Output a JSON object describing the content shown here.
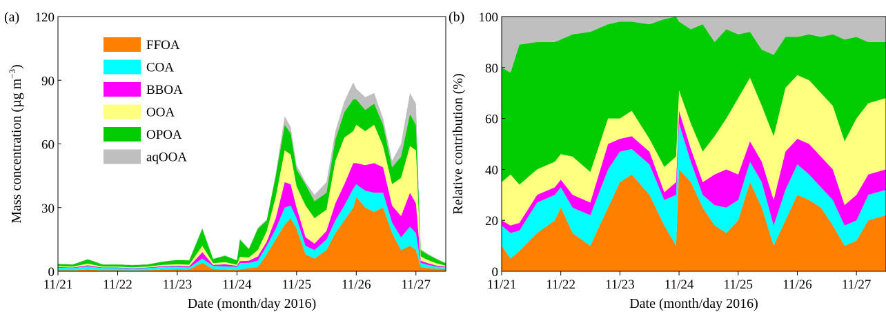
{
  "colors": {
    "FFOA": "#ff7f00",
    "COA": "#00ffff",
    "BBOA": "#ff00ff",
    "OOA": "#ffff80",
    "OPOA": "#00cc00",
    "aqOOA": "#bfbfbf"
  },
  "chart_data": [
    {
      "type": "area",
      "stacked": true,
      "panel_label": "(a)",
      "title": "",
      "xlabel": "Date (month/day 2016)",
      "ylabel_main": "Mass concentration (µg m",
      "ylabel_sup": "−3",
      "ylabel_end": ")",
      "xlim": [
        0,
        6.5
      ],
      "ylim": [
        0,
        120
      ],
      "x_ticks": [
        0,
        1,
        2,
        3,
        4,
        5,
        6
      ],
      "x_tick_labels": [
        "11/21",
        "11/22",
        "11/23",
        "11/24",
        "11/25",
        "11/26",
        "11/27"
      ],
      "y_ticks": [
        0,
        30,
        60,
        90,
        120
      ],
      "y_tick_labels": [
        "0",
        "30",
        "60",
        "90",
        "120"
      ],
      "grid": false,
      "legend_position": "top-left",
      "x": [
        0,
        0.25,
        0.5,
        0.75,
        1.0,
        1.25,
        1.5,
        1.75,
        2.0,
        2.2,
        2.42,
        2.6,
        2.8,
        3.0,
        3.05,
        3.2,
        3.35,
        3.5,
        3.65,
        3.8,
        3.9,
        4.0,
        4.15,
        4.3,
        4.5,
        4.65,
        4.8,
        4.95,
        5.0,
        5.15,
        5.3,
        5.45,
        5.6,
        5.75,
        5.9,
        6.0,
        6.08,
        6.2,
        6.35,
        6.5
      ],
      "series": [
        {
          "name": "FFOA",
          "values": [
            0.5,
            0.5,
            0.8,
            0.5,
            0.5,
            0.4,
            0.5,
            0.8,
            1.0,
            0.8,
            4.0,
            1.0,
            0.8,
            0.6,
            0.8,
            1.5,
            2.0,
            8.0,
            15.0,
            22.0,
            25.0,
            20.0,
            8.0,
            6.0,
            10.0,
            18.0,
            24.0,
            30.0,
            35.0,
            30.0,
            28.0,
            30.0,
            18.0,
            10.0,
            12.0,
            10.0,
            2.0,
            1.5,
            1.2,
            1.0
          ]
        },
        {
          "name": "COA",
          "values": [
            1.2,
            1.0,
            1.5,
            1.0,
            1.0,
            0.8,
            1.0,
            1.2,
            1.2,
            1.0,
            2.0,
            1.5,
            1.5,
            1.5,
            3.0,
            2.5,
            3.0,
            4.0,
            5.0,
            8.0,
            6.0,
            5.0,
            4.0,
            4.0,
            5.0,
            6.0,
            7.0,
            9.0,
            6.0,
            8.0,
            9.0,
            7.0,
            5.0,
            6.0,
            9.0,
            8.0,
            2.0,
            1.5,
            1.0,
            0.8
          ]
        },
        {
          "name": "BBOA",
          "values": [
            0.3,
            0.3,
            0.5,
            0.3,
            0.3,
            0.3,
            0.3,
            0.4,
            0.5,
            0.5,
            3.0,
            0.5,
            1.0,
            0.5,
            1.0,
            1.0,
            2.0,
            2.0,
            5.0,
            12.0,
            10.0,
            5.0,
            4.0,
            3.0,
            4.0,
            8.0,
            10.0,
            12.0,
            10.0,
            12.0,
            14.0,
            12.0,
            8.0,
            10.0,
            16.0,
            14.0,
            1.0,
            0.8,
            0.5,
            0.4
          ]
        },
        {
          "name": "OOA",
          "values": [
            0.4,
            0.4,
            0.8,
            0.4,
            0.4,
            0.4,
            0.4,
            0.6,
            0.6,
            0.8,
            3.0,
            0.8,
            1.0,
            0.5,
            2.0,
            1.5,
            3.0,
            5.0,
            10.0,
            15.0,
            14.0,
            10.0,
            15.0,
            12.0,
            10.0,
            20.0,
            22.0,
            15.0,
            18.0,
            16.0,
            18.0,
            10.0,
            10.0,
            18.0,
            22.0,
            25.0,
            2.0,
            1.5,
            1.0,
            0.5
          ]
        },
        {
          "name": "OPOA",
          "values": [
            1.0,
            1.0,
            2.0,
            1.0,
            1.0,
            1.0,
            1.0,
            1.5,
            2.0,
            2.0,
            8.0,
            2.0,
            3.0,
            2.0,
            8.0,
            4.0,
            10.0,
            5.0,
            10.0,
            12.0,
            10.0,
            8.0,
            10.0,
            8.0,
            8.0,
            10.0,
            12.0,
            15.0,
            12.0,
            10.0,
            10.0,
            10.0,
            8.0,
            10.0,
            15.0,
            12.0,
            3.0,
            2.5,
            2.0,
            1.0
          ]
        },
        {
          "name": "aqOOA",
          "values": [
            0.1,
            0.1,
            0.2,
            0.1,
            0.1,
            0.1,
            0.1,
            0.1,
            0.1,
            0.2,
            0.5,
            0.1,
            0.2,
            0.1,
            0.5,
            0.2,
            0.5,
            0.5,
            1.0,
            4.0,
            3.0,
            2.0,
            1.0,
            3.0,
            5.0,
            4.0,
            5.0,
            8.0,
            5.0,
            6.0,
            5.0,
            3.0,
            3.0,
            6.0,
            10.0,
            10.0,
            0.5,
            0.4,
            0.3,
            0.2
          ]
        }
      ]
    },
    {
      "type": "area",
      "stacked": true,
      "panel_label": "(b)",
      "title": "",
      "xlabel": "Date (month/day 2016)",
      "ylabel": "Relative contribution (%)",
      "xlim": [
        0,
        6.5
      ],
      "ylim": [
        0,
        100
      ],
      "x_ticks": [
        0,
        1,
        2,
        3,
        4,
        5,
        6
      ],
      "x_tick_labels": [
        "11/21",
        "11/22",
        "11/23",
        "11/24",
        "11/25",
        "11/26",
        "11/27"
      ],
      "y_ticks": [
        0,
        20,
        40,
        60,
        80,
        100
      ],
      "y_tick_labels": [
        "0",
        "20",
        "40",
        "60",
        "80",
        "100"
      ],
      "grid": false,
      "x": [
        0,
        0.15,
        0.3,
        0.6,
        0.9,
        1.0,
        1.2,
        1.5,
        1.8,
        2.0,
        2.2,
        2.5,
        2.75,
        2.95,
        3.0,
        3.2,
        3.4,
        3.6,
        3.8,
        4.0,
        4.2,
        4.4,
        4.6,
        4.8,
        5.0,
        5.2,
        5.4,
        5.6,
        5.8,
        6.0,
        6.2,
        6.5
      ],
      "series": [
        {
          "name": "FFOA",
          "values": [
            10,
            5,
            8,
            15,
            20,
            25,
            15,
            10,
            25,
            35,
            38,
            30,
            18,
            10,
            40,
            35,
            25,
            18,
            15,
            20,
            35,
            25,
            10,
            20,
            30,
            28,
            25,
            18,
            10,
            12,
            20,
            22
          ]
        },
        {
          "name": "COA",
          "values": [
            8,
            10,
            8,
            12,
            10,
            8,
            10,
            12,
            15,
            12,
            10,
            12,
            10,
            20,
            18,
            8,
            5,
            8,
            10,
            8,
            8,
            10,
            8,
            12,
            12,
            10,
            8,
            10,
            8,
            8,
            10,
            10
          ]
        },
        {
          "name": "BBOA",
          "values": [
            2,
            3,
            3,
            3,
            3,
            3,
            5,
            5,
            10,
            5,
            5,
            5,
            3,
            5,
            5,
            5,
            5,
            12,
            15,
            10,
            8,
            8,
            10,
            15,
            10,
            12,
            12,
            12,
            8,
            10,
            8,
            8
          ]
        },
        {
          "name": "OOA",
          "values": [
            15,
            20,
            15,
            10,
            10,
            10,
            15,
            12,
            10,
            8,
            10,
            5,
            10,
            10,
            8,
            10,
            12,
            15,
            20,
            30,
            25,
            22,
            25,
            25,
            25,
            25,
            25,
            25,
            25,
            30,
            28,
            28
          ]
        },
        {
          "name": "OPOA",
          "values": [
            45,
            40,
            55,
            50,
            47,
            45,
            48,
            55,
            37,
            38,
            35,
            45,
            58,
            55,
            27,
            37,
            50,
            37,
            35,
            25,
            18,
            22,
            32,
            20,
            15,
            18,
            22,
            28,
            40,
            32,
            24,
            22
          ]
        },
        {
          "name": "aqOOA",
          "values": [
            20,
            22,
            11,
            10,
            10,
            9,
            7,
            6,
            3,
            2,
            2,
            3,
            1,
            0,
            2,
            5,
            3,
            10,
            5,
            7,
            6,
            13,
            15,
            8,
            8,
            7,
            8,
            7,
            9,
            8,
            10,
            10
          ]
        }
      ]
    }
  ]
}
